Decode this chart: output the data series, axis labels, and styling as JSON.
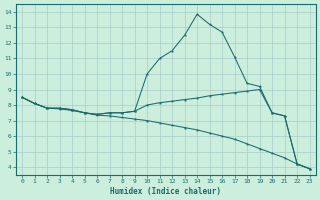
{
  "xlabel": "Humidex (Indice chaleur)",
  "bg_color": "#cceedd",
  "grid_color": "#aacccc",
  "line_color": "#1a6b6b",
  "xlim": [
    -0.5,
    23.5
  ],
  "ylim": [
    3.5,
    14.5
  ],
  "yticks": [
    4,
    5,
    6,
    7,
    8,
    9,
    10,
    11,
    12,
    13,
    14
  ],
  "xticks": [
    0,
    1,
    2,
    3,
    4,
    5,
    6,
    7,
    8,
    9,
    10,
    11,
    12,
    13,
    14,
    15,
    16,
    17,
    18,
    19,
    20,
    21,
    22,
    23
  ],
  "line1_x": [
    0,
    1,
    2,
    3,
    4,
    5,
    6,
    7,
    8,
    9,
    10,
    11,
    12,
    13,
    14,
    15,
    16,
    17,
    18,
    19,
    20,
    21,
    22,
    23
  ],
  "line1_y": [
    8.5,
    8.1,
    7.8,
    7.8,
    7.7,
    7.5,
    7.4,
    7.5,
    7.5,
    7.6,
    10.0,
    11.0,
    11.5,
    12.5,
    13.85,
    13.2,
    12.7,
    11.1,
    9.4,
    9.2,
    7.5,
    7.3,
    4.2,
    3.9
  ],
  "line2_x": [
    0,
    1,
    2,
    3,
    4,
    5,
    6,
    7,
    8,
    9,
    10,
    11,
    12,
    13,
    14,
    15,
    16,
    17,
    18,
    19,
    20,
    21,
    22,
    23
  ],
  "line2_y": [
    8.5,
    8.1,
    7.8,
    7.8,
    7.7,
    7.5,
    7.4,
    7.5,
    7.5,
    7.6,
    8.0,
    8.15,
    8.25,
    8.35,
    8.45,
    8.6,
    8.7,
    8.8,
    8.9,
    9.0,
    7.5,
    7.3,
    4.2,
    3.9
  ],
  "line3_x": [
    0,
    1,
    2,
    3,
    4,
    5,
    6,
    7,
    8,
    9,
    10,
    11,
    12,
    13,
    14,
    15,
    16,
    17,
    18,
    19,
    20,
    21,
    22,
    23
  ],
  "line3_y": [
    8.5,
    8.1,
    7.8,
    7.75,
    7.65,
    7.5,
    7.35,
    7.3,
    7.2,
    7.1,
    7.0,
    6.85,
    6.7,
    6.55,
    6.4,
    6.2,
    6.0,
    5.8,
    5.5,
    5.2,
    4.9,
    4.6,
    4.2,
    3.9
  ]
}
